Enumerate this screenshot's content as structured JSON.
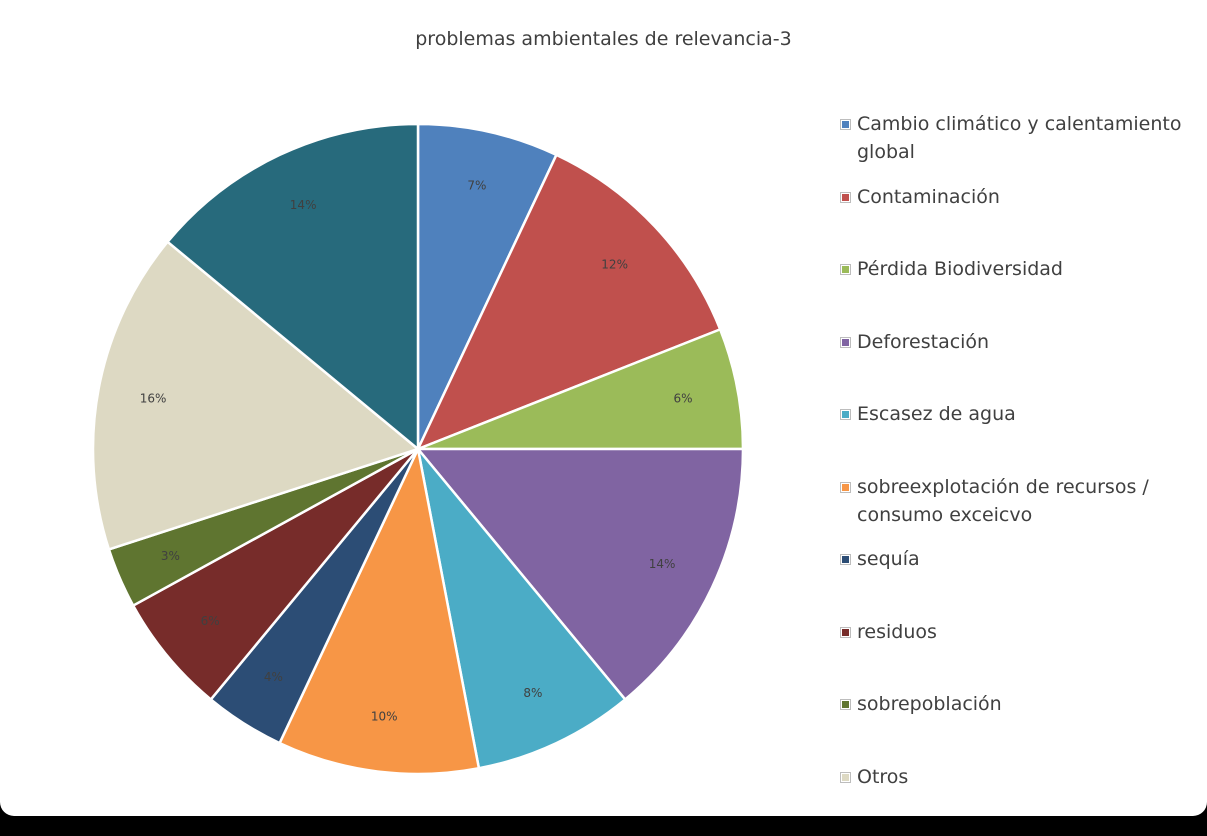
{
  "chart_data": {
    "type": "pie",
    "title": "problemas ambientales de relevancia-3",
    "legend_position": "right",
    "slices": [
      {
        "name": "Cambio climático y calentamiento global",
        "legend_lines": [
          "Cambio climático y calentamiento",
          "global"
        ],
        "value": 7,
        "label": "7%",
        "color": "#4F81BD"
      },
      {
        "name": "Contaminación",
        "legend_lines": [
          "Contaminación"
        ],
        "value": 12,
        "label": "12%",
        "color": "#C0504D"
      },
      {
        "name": "Pérdida Biodiversidad",
        "legend_lines": [
          "Pérdida Biodiversidad"
        ],
        "value": 6,
        "label": "6%",
        "color": "#9BBB59"
      },
      {
        "name": "Deforestación",
        "legend_lines": [
          "Deforestación"
        ],
        "value": 14,
        "label": "14%",
        "color": "#8064A2"
      },
      {
        "name": "Escasez de agua",
        "legend_lines": [
          "Escasez de agua"
        ],
        "value": 8,
        "label": "8%",
        "color": "#4BACC6"
      },
      {
        "name": "sobreexplotación de recursos / consumo exceicvo",
        "legend_lines": [
          "sobreexplotación de recursos /",
          "consumo exceicvo"
        ],
        "value": 10,
        "label": "10%",
        "color": "#F79646"
      },
      {
        "name": "sequía",
        "legend_lines": [
          "sequía"
        ],
        "value": 4,
        "label": "4%",
        "color": "#2C4D75"
      },
      {
        "name": "residuos",
        "legend_lines": [
          "residuos"
        ],
        "value": 6,
        "label": "6%",
        "color": "#772C2A"
      },
      {
        "name": "sobrepoblación",
        "legend_lines": [
          "sobrepoblación"
        ],
        "value": 3,
        "label": "3%",
        "color": "#5F7530"
      },
      {
        "name": "Otros",
        "legend_lines": [
          "Otros"
        ],
        "value": 16,
        "label": "16%",
        "color": "#DDD9C3"
      },
      {
        "name": "",
        "legend_lines": [],
        "value": 14,
        "label": "14%",
        "color": "#276A7C"
      }
    ]
  }
}
